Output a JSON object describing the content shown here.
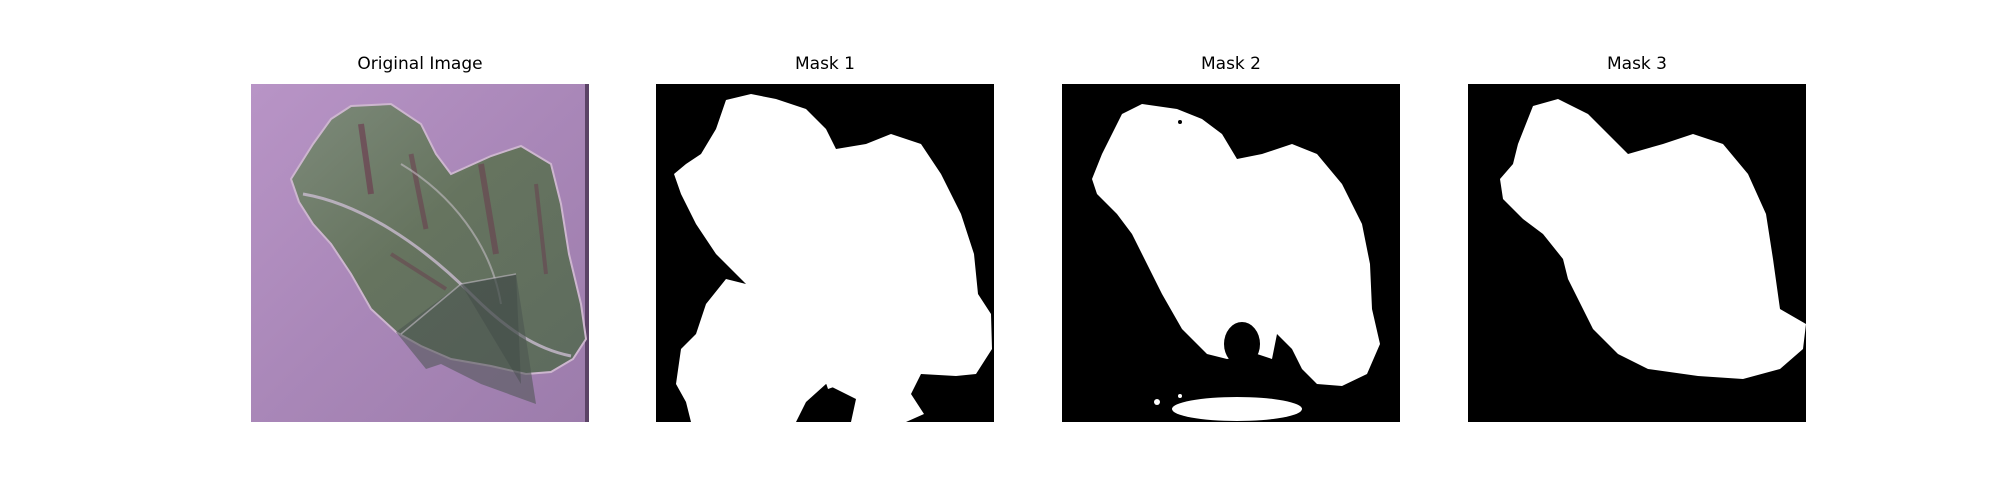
{
  "figure": {
    "panels": [
      {
        "title": "Original Image",
        "kind": "photo"
      },
      {
        "title": "Mask 1",
        "kind": "mask"
      },
      {
        "title": "Mask 2",
        "kind": "mask"
      },
      {
        "title": "Mask 3",
        "kind": "mask"
      }
    ],
    "colors": {
      "background": "#ffffff",
      "mask_foreground": "#ffffff",
      "mask_background": "#000000",
      "photo_background": "#b08fbf",
      "leaf": "#6f7d70"
    }
  }
}
